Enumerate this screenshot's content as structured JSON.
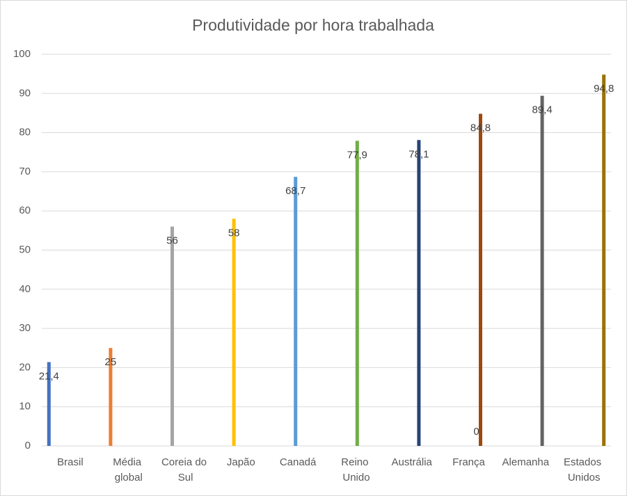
{
  "chart_data": {
    "type": "bar",
    "title": "Produtividade por hora trabalhada",
    "categories": [
      "Brasil",
      "Média global",
      "Coreia do Sul",
      "Japão",
      "Canadá",
      "Reino Unido",
      "Austrália",
      "França",
      "Alemanha",
      "Estados Unidos"
    ],
    "values": [
      21.4,
      25,
      56,
      58,
      68.7,
      77.9,
      78.1,
      84.8,
      89.4,
      94.8
    ],
    "value_labels": [
      "21,4",
      "25",
      "56",
      "58",
      "68,7",
      "77,9",
      "78,1",
      "84,8",
      "89,4",
      "94,8"
    ],
    "colors": [
      "#4472c4",
      "#ed7d31",
      "#a5a5a5",
      "#ffc000",
      "#5b9bd5",
      "#70ad47",
      "#264478",
      "#9e480e",
      "#636363",
      "#997300"
    ],
    "annotations": [
      {
        "category": "França",
        "value": 0
      }
    ],
    "ylim": [
      0,
      100
    ],
    "yticks": [
      0,
      10,
      20,
      30,
      40,
      50,
      60,
      70,
      80,
      90,
      100
    ],
    "grid": true
  }
}
